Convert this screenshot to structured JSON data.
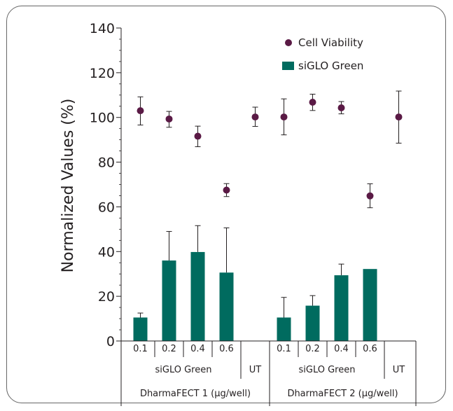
{
  "chart_data": {
    "type": "bar",
    "ylabel": "Normalized Values (%)",
    "ylim": [
      0,
      140
    ],
    "yticks": [
      0,
      20,
      40,
      60,
      80,
      100,
      120,
      140
    ],
    "grid": false,
    "legend_position": "top-right",
    "categories": [
      "0.1",
      "0.2",
      "0.4",
      "0.6",
      "",
      "0.1",
      "0.2",
      "0.4",
      "0.6",
      ""
    ],
    "category_groups": [
      {
        "label": "siGLO Green",
        "span": 4
      },
      {
        "label": "UT",
        "span": 1
      },
      {
        "label": "siGLO Green",
        "span": 4
      },
      {
        "label": "UT",
        "span": 1
      }
    ],
    "super_groups": [
      {
        "label": "DharmaFECT 1 (µg/well)",
        "span": 5
      },
      {
        "label": "DharmaFECT 2 (µg/well)",
        "span": 5
      }
    ],
    "series": [
      {
        "name": "siGLO Green",
        "kind": "bar",
        "color": "#006b5f",
        "values": [
          10.5,
          36,
          39.8,
          30.6,
          null,
          10.5,
          15.8,
          29.4,
          32.2,
          null
        ],
        "error_upper": [
          2,
          13,
          11.8,
          20,
          null,
          9,
          4.5,
          5,
          null,
          null
        ]
      },
      {
        "name": "Cell Viability",
        "kind": "scatter",
        "color": "#5a1a45",
        "values": [
          103,
          99.3,
          91.6,
          67.5,
          null,
          100.2,
          106.8,
          104.3,
          64.9,
          null
        ],
        "values_ut": [
          null,
          null,
          null,
          null,
          100.2,
          null,
          null,
          null,
          null,
          100.2
        ],
        "error_low": [
          96.6,
          95.6,
          86.9,
          64.6,
          96,
          92.2,
          103.1,
          101.6,
          59.6,
          88.5
        ],
        "error_high": [
          109.2,
          102.7,
          96.1,
          70.4,
          104.6,
          108.3,
          110.4,
          107.1,
          70.3,
          111.8
        ]
      }
    ]
  }
}
